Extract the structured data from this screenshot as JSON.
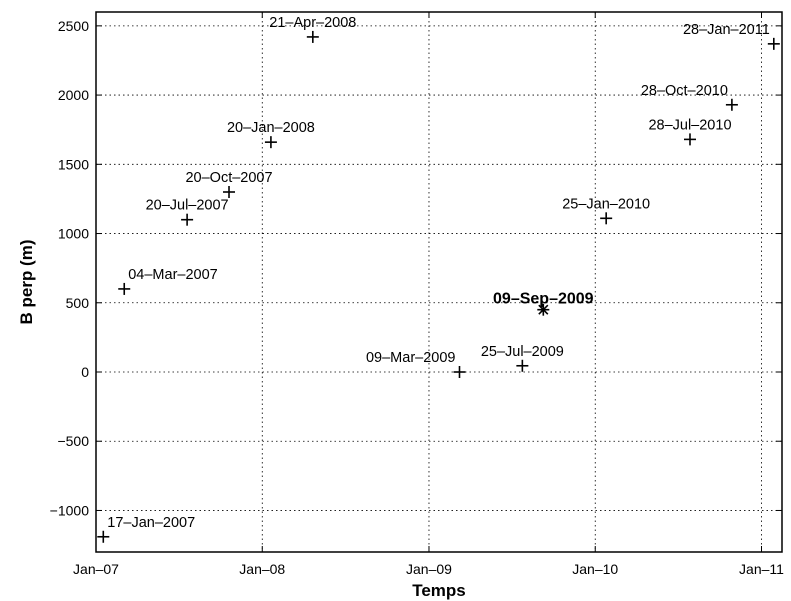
{
  "chart_data": {
    "type": "scatter",
    "xlabel": "Temps",
    "ylabel": "B perp (m)",
    "ylim": [
      -1300,
      2600
    ],
    "xlim": [
      "2007-01-01",
      "2011-02-15"
    ],
    "grid": true,
    "y_ticks": [
      -1000,
      -500,
      0,
      500,
      1000,
      1500,
      2000,
      2500
    ],
    "x_ticks": [
      {
        "date": "2007-01-01",
        "label": "Jan–07"
      },
      {
        "date": "2008-01-01",
        "label": "Jan–08"
      },
      {
        "date": "2009-01-01",
        "label": "Jan–09"
      },
      {
        "date": "2010-01-01",
        "label": "Jan–10"
      },
      {
        "date": "2011-01-01",
        "label": "Jan–11"
      }
    ],
    "master_color": "#000000",
    "points": [
      {
        "date": "2007-01-17",
        "bperp": -1190,
        "label": "17–Jan–2007",
        "marker": "plus",
        "bold": false,
        "label_pos": "above-right"
      },
      {
        "date": "2007-03-04",
        "bperp": 600,
        "label": "04–Mar–2007",
        "marker": "plus",
        "bold": false,
        "label_pos": "above-right"
      },
      {
        "date": "2007-07-20",
        "bperp": 1100,
        "label": "20–Jul–2007",
        "marker": "plus",
        "bold": false,
        "label_pos": "above"
      },
      {
        "date": "2007-10-20",
        "bperp": 1300,
        "label": "20–Oct–2007",
        "marker": "plus",
        "bold": false,
        "label_pos": "above"
      },
      {
        "date": "2008-01-20",
        "bperp": 1660,
        "label": "20–Jan–2008",
        "marker": "plus",
        "bold": false,
        "label_pos": "above"
      },
      {
        "date": "2008-04-21",
        "bperp": 2420,
        "label": "21–Apr–2008",
        "marker": "plus",
        "bold": false,
        "label_pos": "above"
      },
      {
        "date": "2009-03-09",
        "bperp": 0,
        "label": "09–Mar–2009",
        "marker": "plus",
        "bold": false,
        "label_pos": "above-left"
      },
      {
        "date": "2009-07-25",
        "bperp": 45,
        "label": "25–Jul–2009",
        "marker": "plus",
        "bold": false,
        "label_pos": "above"
      },
      {
        "date": "2009-09-09",
        "bperp": 450,
        "label": "09–Sep–2009",
        "marker": "star",
        "bold": true,
        "label_pos": "above"
      },
      {
        "date": "2010-01-25",
        "bperp": 1110,
        "label": "25–Jan–2010",
        "marker": "plus",
        "bold": false,
        "label_pos": "above"
      },
      {
        "date": "2010-07-28",
        "bperp": 1680,
        "label": "28–Jul–2010",
        "marker": "plus",
        "bold": false,
        "label_pos": "above"
      },
      {
        "date": "2010-10-28",
        "bperp": 1930,
        "label": "28–Oct–2010",
        "marker": "plus",
        "bold": false,
        "label_pos": "above-left"
      },
      {
        "date": "2011-01-28",
        "bperp": 2370,
        "label": "28–Jan–2011",
        "marker": "plus",
        "bold": false,
        "label_pos": "above-left"
      }
    ]
  }
}
